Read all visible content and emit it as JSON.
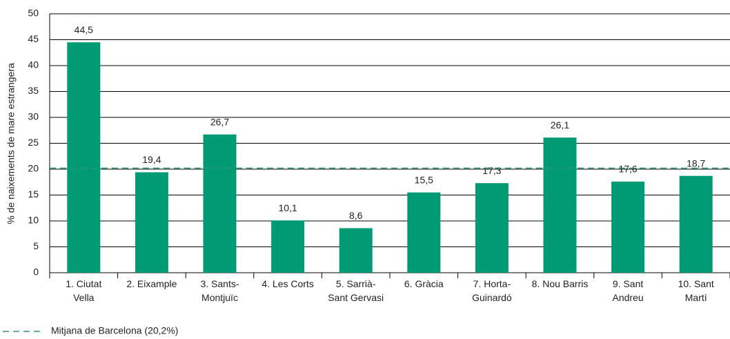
{
  "chart_data": {
    "type": "bar",
    "ylabel": "% de naixements de mare estrangera",
    "categories": [
      "1. Ciutat\nVella",
      "2. Eixample",
      "3. Sants-\nMontjuïc",
      "4. Les Corts",
      "5. Sarrià-\nSant Gervasi",
      "6. Gràcia",
      "7. Horta-\nGuinardó",
      "8. Nou Barris",
      "9. Sant\nAndreu",
      "10. Sant\nMartí"
    ],
    "values": [
      44.5,
      19.4,
      26.7,
      10.1,
      8.6,
      15.5,
      17.3,
      26.1,
      17.6,
      18.7
    ],
    "value_labels": [
      "44,5",
      "19,4",
      "26,7",
      "10,1",
      "8,6",
      "15,5",
      "17,3",
      "26,1",
      "17,6",
      "18,7"
    ],
    "color": "#009a74",
    "ylim": [
      0,
      50
    ],
    "yticks": [
      0,
      5,
      10,
      15,
      20,
      25,
      30,
      35,
      40,
      45,
      50
    ],
    "grid": true,
    "reference_line": {
      "value": 20.2,
      "color": "#2a9a7c",
      "label": "Mitjana de Barcelona (20,2%)"
    }
  }
}
